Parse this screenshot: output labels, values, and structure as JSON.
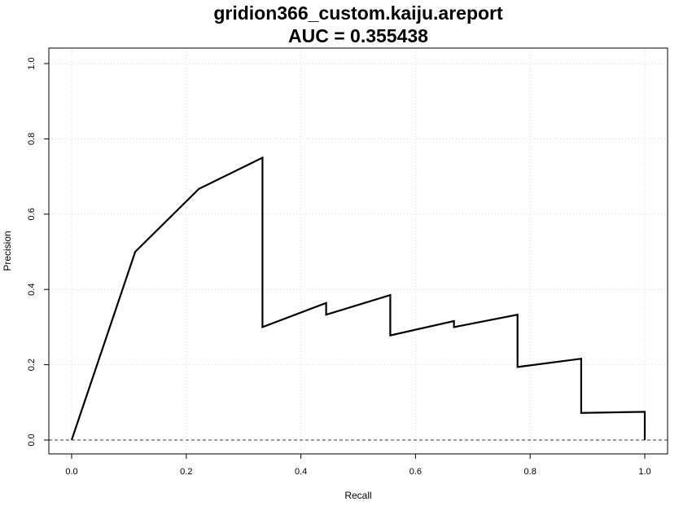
{
  "chart_data": {
    "type": "line",
    "title": "gridion366_custom.kaiju.areport",
    "subtitle": "AUC = 0.355438",
    "xlabel": "Recall",
    "ylabel": "Precision",
    "xlim": [
      0.0,
      1.0
    ],
    "ylim": [
      0.0,
      1.0
    ],
    "x_ticks": [
      "0.0",
      "0.2",
      "0.4",
      "0.6",
      "0.8",
      "1.0"
    ],
    "y_ticks": [
      "0.0",
      "0.2",
      "0.4",
      "0.6",
      "0.8",
      "1.0"
    ],
    "grid": true,
    "baseline": 0.0,
    "colors": {
      "line": "#000000",
      "grid": "#d9d9d9",
      "baseline": "#666666"
    },
    "series": [
      {
        "x": [
          0.0,
          0.111,
          0.222,
          0.333,
          0.333,
          0.444,
          0.444,
          0.556,
          0.556,
          0.667,
          0.667,
          0.778,
          0.778,
          0.889,
          0.889,
          1.0,
          1.0
        ],
        "y": [
          0.0,
          0.5,
          0.667,
          0.75,
          0.3,
          0.364,
          0.333,
          0.385,
          0.278,
          0.316,
          0.3,
          0.333,
          0.194,
          0.216,
          0.072,
          0.075,
          0.0
        ]
      }
    ]
  }
}
